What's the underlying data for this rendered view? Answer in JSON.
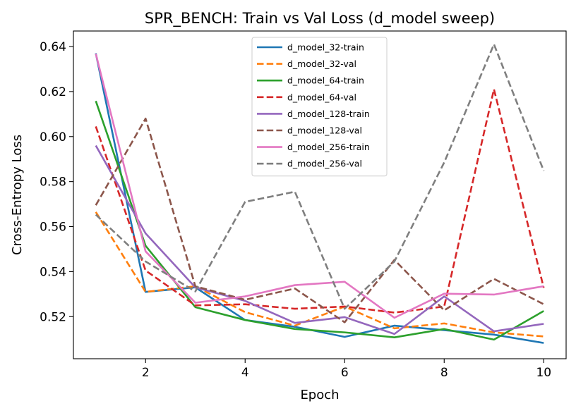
{
  "chart_data": {
    "type": "line",
    "title": "SPR_BENCH: Train vs Val Loss (d_model sweep)",
    "xlabel": "Epoch",
    "ylabel": "Cross-Entropy Loss",
    "x": [
      1,
      2,
      3,
      4,
      5,
      6,
      7,
      8,
      9,
      10
    ],
    "xlim": [
      0.55,
      10.45
    ],
    "ylim": [
      0.5013,
      0.6469
    ],
    "xticks": [
      2,
      4,
      6,
      8,
      10
    ],
    "xtick_labels": [
      "2",
      "4",
      "6",
      "8",
      "10"
    ],
    "yticks": [
      0.52,
      0.54,
      0.56,
      0.58,
      0.6,
      0.62,
      0.64
    ],
    "ytick_labels": [
      "0.52",
      "0.54",
      "0.56",
      "0.58",
      "0.60",
      "0.62",
      "0.64"
    ],
    "grid": false,
    "legend_position": "top-center",
    "series": [
      {
        "name": "d_model_32-train",
        "color": "#1f77b4",
        "style": "solid",
        "values": [
          0.637,
          0.531,
          0.533,
          0.5185,
          0.5155,
          0.511,
          0.516,
          0.514,
          0.512,
          0.5083
        ]
      },
      {
        "name": "d_model_32-val",
        "color": "#ff7f0e",
        "style": "dashed",
        "values": [
          0.5665,
          0.531,
          0.5335,
          0.522,
          0.516,
          0.5245,
          0.5148,
          0.517,
          0.513,
          0.5112
        ]
      },
      {
        "name": "d_model_64-train",
        "color": "#2ca02c",
        "style": "solid",
        "values": [
          0.6158,
          0.5515,
          0.5242,
          0.5185,
          0.5145,
          0.513,
          0.5108,
          0.5145,
          0.5098,
          0.5225
        ]
      },
      {
        "name": "d_model_64-val",
        "color": "#d62728",
        "style": "dashed",
        "values": [
          0.6045,
          0.5405,
          0.525,
          0.5255,
          0.5235,
          0.5245,
          0.5218,
          0.5245,
          0.621,
          0.5328
        ]
      },
      {
        "name": "d_model_128-train",
        "color": "#9467bd",
        "style": "solid",
        "values": [
          0.596,
          0.557,
          0.533,
          0.527,
          0.5172,
          0.5198,
          0.5123,
          0.529,
          0.5135,
          0.5168
        ]
      },
      {
        "name": "d_model_128-val",
        "color": "#8c564b",
        "style": "dashed",
        "values": [
          0.5695,
          0.608,
          0.5335,
          0.5275,
          0.5325,
          0.5175,
          0.5452,
          0.5228,
          0.5368,
          0.5255
        ]
      },
      {
        "name": "d_model_256-train",
        "color": "#e377c2",
        "style": "solid",
        "values": [
          0.6368,
          0.549,
          0.5262,
          0.529,
          0.534,
          0.5355,
          0.5195,
          0.5302,
          0.5298,
          0.5335
        ]
      },
      {
        "name": "d_model_256-val",
        "color": "#7f7f7f",
        "style": "dashed",
        "values": [
          0.5653,
          0.5445,
          0.5312,
          0.571,
          0.5755,
          0.5235,
          0.5445,
          0.5885,
          0.641,
          0.5848
        ]
      }
    ]
  }
}
